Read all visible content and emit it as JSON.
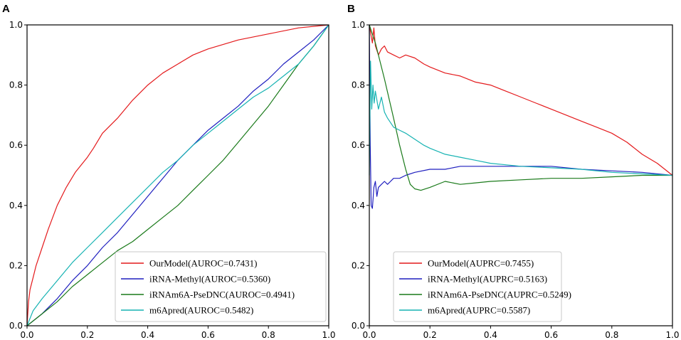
{
  "chart_data": [
    {
      "panel": "A",
      "type": "line",
      "title": "",
      "xlabel": "",
      "ylabel": "",
      "xlim": [
        0,
        1
      ],
      "ylim": [
        0,
        1
      ],
      "x_ticks": [
        "0.0",
        "0.2",
        "0.4",
        "0.6",
        "0.8",
        "1.0"
      ],
      "y_ticks": [
        "0.0",
        "0.2",
        "0.4",
        "0.6",
        "0.8",
        "1.0"
      ],
      "legend_position": "lower-right",
      "series": [
        {
          "name": "OurModel(AUROC=0.7431)",
          "color": "#e41a1c",
          "points": [
            [
              0,
              0
            ],
            [
              0.005,
              0.08
            ],
            [
              0.01,
              0.12
            ],
            [
              0.02,
              0.16
            ],
            [
              0.03,
              0.2
            ],
            [
              0.05,
              0.26
            ],
            [
              0.07,
              0.32
            ],
            [
              0.1,
              0.4
            ],
            [
              0.13,
              0.46
            ],
            [
              0.16,
              0.51
            ],
            [
              0.2,
              0.56
            ],
            [
              0.22,
              0.59
            ],
            [
              0.25,
              0.64
            ],
            [
              0.3,
              0.69
            ],
            [
              0.35,
              0.75
            ],
            [
              0.4,
              0.8
            ],
            [
              0.45,
              0.84
            ],
            [
              0.5,
              0.87
            ],
            [
              0.55,
              0.9
            ],
            [
              0.6,
              0.92
            ],
            [
              0.7,
              0.95
            ],
            [
              0.8,
              0.97
            ],
            [
              0.9,
              0.99
            ],
            [
              1,
              1
            ]
          ]
        },
        {
          "name": "iRNA-Methyl(AUROC=0.5360)",
          "color": "#1f1fbf",
          "points": [
            [
              0,
              0
            ],
            [
              0.05,
              0.04
            ],
            [
              0.1,
              0.09
            ],
            [
              0.15,
              0.15
            ],
            [
              0.2,
              0.2
            ],
            [
              0.25,
              0.26
            ],
            [
              0.3,
              0.31
            ],
            [
              0.35,
              0.37
            ],
            [
              0.4,
              0.43
            ],
            [
              0.45,
              0.49
            ],
            [
              0.5,
              0.55
            ],
            [
              0.55,
              0.6
            ],
            [
              0.6,
              0.65
            ],
            [
              0.65,
              0.69
            ],
            [
              0.7,
              0.73
            ],
            [
              0.75,
              0.78
            ],
            [
              0.8,
              0.82
            ],
            [
              0.85,
              0.87
            ],
            [
              0.9,
              0.91
            ],
            [
              0.95,
              0.95
            ],
            [
              1,
              1
            ]
          ]
        },
        {
          "name": "iRNAm6A-PseDNC(AUROC=0.4941)",
          "color": "#1a7a1a",
          "points": [
            [
              0,
              0
            ],
            [
              0.05,
              0.04
            ],
            [
              0.1,
              0.08
            ],
            [
              0.15,
              0.13
            ],
            [
              0.2,
              0.17
            ],
            [
              0.25,
              0.21
            ],
            [
              0.3,
              0.25
            ],
            [
              0.35,
              0.28
            ],
            [
              0.4,
              0.32
            ],
            [
              0.45,
              0.36
            ],
            [
              0.5,
              0.4
            ],
            [
              0.55,
              0.45
            ],
            [
              0.6,
              0.5
            ],
            [
              0.65,
              0.55
            ],
            [
              0.7,
              0.61
            ],
            [
              0.75,
              0.67
            ],
            [
              0.8,
              0.73
            ],
            [
              0.85,
              0.8
            ],
            [
              0.9,
              0.87
            ],
            [
              0.95,
              0.93
            ],
            [
              1,
              1
            ]
          ]
        },
        {
          "name": "m6Apred(AUROC=0.5482)",
          "color": "#17b3b3",
          "points": [
            [
              0,
              0
            ],
            [
              0.02,
              0.05
            ],
            [
              0.05,
              0.09
            ],
            [
              0.1,
              0.15
            ],
            [
              0.15,
              0.21
            ],
            [
              0.2,
              0.26
            ],
            [
              0.25,
              0.31
            ],
            [
              0.3,
              0.36
            ],
            [
              0.35,
              0.41
            ],
            [
              0.4,
              0.46
            ],
            [
              0.45,
              0.51
            ],
            [
              0.5,
              0.55
            ],
            [
              0.55,
              0.6
            ],
            [
              0.6,
              0.64
            ],
            [
              0.65,
              0.68
            ],
            [
              0.7,
              0.72
            ],
            [
              0.75,
              0.76
            ],
            [
              0.8,
              0.79
            ],
            [
              0.85,
              0.83
            ],
            [
              0.9,
              0.87
            ],
            [
              0.95,
              0.93
            ],
            [
              1,
              1
            ]
          ]
        }
      ]
    },
    {
      "panel": "B",
      "type": "line",
      "title": "",
      "xlabel": "",
      "ylabel": "",
      "xlim": [
        0,
        1
      ],
      "ylim": [
        0,
        1
      ],
      "x_ticks": [
        "0.0",
        "0.2",
        "0.4",
        "0.6",
        "0.8",
        "1.0"
      ],
      "y_ticks": [
        "0.0",
        "0.2",
        "0.4",
        "0.6",
        "0.8",
        "1.0"
      ],
      "legend_position": "lower-right",
      "series": [
        {
          "name": "OurModel(AUPRC=0.7455)",
          "color": "#e41a1c",
          "points": [
            [
              0,
              1
            ],
            [
              0.005,
              0.97
            ],
            [
              0.01,
              0.94
            ],
            [
              0.015,
              0.99
            ],
            [
              0.02,
              0.93
            ],
            [
              0.03,
              0.9
            ],
            [
              0.04,
              0.92
            ],
            [
              0.05,
              0.93
            ],
            [
              0.06,
              0.91
            ],
            [
              0.08,
              0.9
            ],
            [
              0.1,
              0.89
            ],
            [
              0.12,
              0.9
            ],
            [
              0.15,
              0.89
            ],
            [
              0.18,
              0.87
            ],
            [
              0.2,
              0.86
            ],
            [
              0.25,
              0.84
            ],
            [
              0.3,
              0.83
            ],
            [
              0.35,
              0.81
            ],
            [
              0.4,
              0.8
            ],
            [
              0.45,
              0.78
            ],
            [
              0.5,
              0.76
            ],
            [
              0.55,
              0.74
            ],
            [
              0.6,
              0.72
            ],
            [
              0.65,
              0.7
            ],
            [
              0.7,
              0.68
            ],
            [
              0.75,
              0.66
            ],
            [
              0.8,
              0.64
            ],
            [
              0.85,
              0.61
            ],
            [
              0.9,
              0.57
            ],
            [
              0.95,
              0.54
            ],
            [
              1,
              0.5
            ]
          ]
        },
        {
          "name": "iRNA-Methyl(AUPRC=0.5163)",
          "color": "#1f1fbf",
          "points": [
            [
              0,
              1
            ],
            [
              0.003,
              0.6
            ],
            [
              0.006,
              0.4
            ],
            [
              0.01,
              0.39
            ],
            [
              0.015,
              0.46
            ],
            [
              0.02,
              0.48
            ],
            [
              0.025,
              0.43
            ],
            [
              0.03,
              0.46
            ],
            [
              0.04,
              0.47
            ],
            [
              0.05,
              0.48
            ],
            [
              0.06,
              0.47
            ],
            [
              0.07,
              0.48
            ],
            [
              0.08,
              0.49
            ],
            [
              0.1,
              0.49
            ],
            [
              0.12,
              0.5
            ],
            [
              0.15,
              0.51
            ],
            [
              0.2,
              0.52
            ],
            [
              0.25,
              0.52
            ],
            [
              0.3,
              0.53
            ],
            [
              0.35,
              0.53
            ],
            [
              0.4,
              0.53
            ],
            [
              0.5,
              0.53
            ],
            [
              0.6,
              0.53
            ],
            [
              0.7,
              0.52
            ],
            [
              0.8,
              0.515
            ],
            [
              0.9,
              0.51
            ],
            [
              1,
              0.5
            ]
          ]
        },
        {
          "name": "iRNAm6A-PseDNC(AUPRC=0.5249)",
          "color": "#1a7a1a",
          "points": [
            [
              0,
              1
            ],
            [
              0.02,
              0.94
            ],
            [
              0.05,
              0.82
            ],
            [
              0.08,
              0.69
            ],
            [
              0.1,
              0.6
            ],
            [
              0.12,
              0.52
            ],
            [
              0.135,
              0.47
            ],
            [
              0.15,
              0.455
            ],
            [
              0.17,
              0.45
            ],
            [
              0.2,
              0.46
            ],
            [
              0.25,
              0.48
            ],
            [
              0.3,
              0.47
            ],
            [
              0.35,
              0.475
            ],
            [
              0.4,
              0.48
            ],
            [
              0.5,
              0.485
            ],
            [
              0.6,
              0.49
            ],
            [
              0.7,
              0.49
            ],
            [
              0.8,
              0.495
            ],
            [
              0.9,
              0.5
            ],
            [
              1,
              0.5
            ]
          ]
        },
        {
          "name": "m6Apred(AUPRC=0.5587)",
          "color": "#17b3b3",
          "points": [
            [
              0,
              0.5
            ],
            [
              0.004,
              0.88
            ],
            [
              0.008,
              0.72
            ],
            [
              0.012,
              0.8
            ],
            [
              0.016,
              0.74
            ],
            [
              0.02,
              0.78
            ],
            [
              0.03,
              0.72
            ],
            [
              0.04,
              0.76
            ],
            [
              0.05,
              0.71
            ],
            [
              0.06,
              0.69
            ],
            [
              0.08,
              0.66
            ],
            [
              0.1,
              0.65
            ],
            [
              0.12,
              0.64
            ],
            [
              0.15,
              0.62
            ],
            [
              0.18,
              0.6
            ],
            [
              0.2,
              0.59
            ],
            [
              0.25,
              0.57
            ],
            [
              0.3,
              0.56
            ],
            [
              0.35,
              0.55
            ],
            [
              0.4,
              0.54
            ],
            [
              0.45,
              0.535
            ],
            [
              0.5,
              0.53
            ],
            [
              0.6,
              0.525
            ],
            [
              0.7,
              0.52
            ],
            [
              0.8,
              0.51
            ],
            [
              0.9,
              0.505
            ],
            [
              1,
              0.5
            ]
          ]
        }
      ]
    }
  ]
}
